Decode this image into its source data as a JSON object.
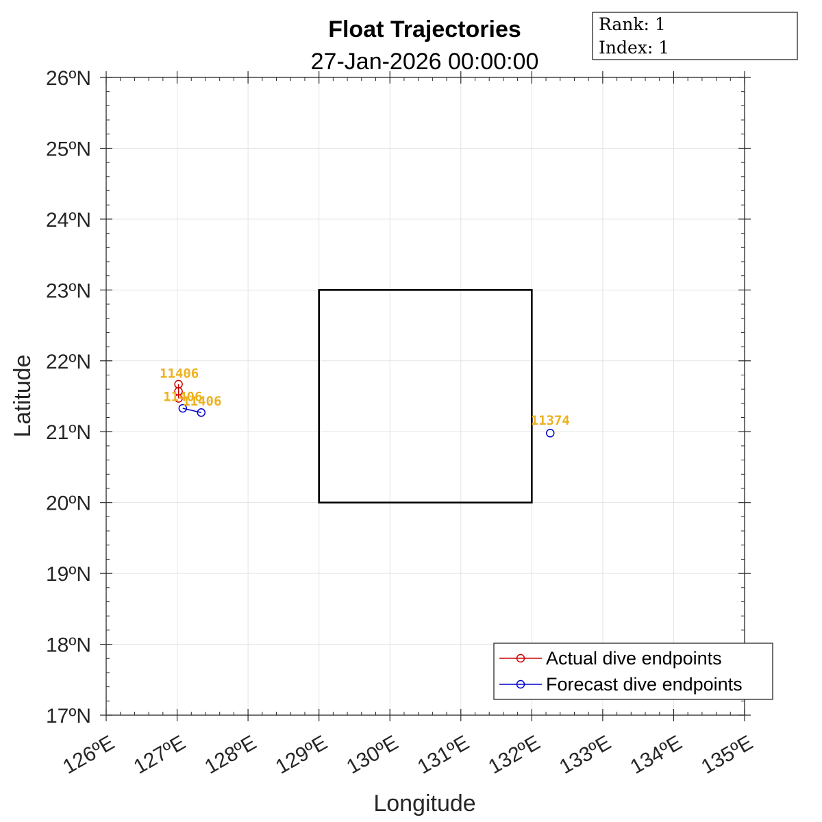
{
  "chart_data": {
    "type": "map",
    "title": "Float Trajectories",
    "subtitle": "27-Jan-2026 00:00:00",
    "xlabel": "Longitude",
    "ylabel": "Latitude",
    "xlim": [
      126,
      135
    ],
    "ylim": [
      17,
      26
    ],
    "x_ticks": [
      126,
      127,
      128,
      129,
      130,
      131,
      132,
      133,
      134,
      135
    ],
    "y_ticks": [
      17,
      18,
      19,
      20,
      21,
      22,
      23,
      24,
      25,
      26
    ],
    "x_tick_labels": [
      "126ºE",
      "127ºE",
      "128ºE",
      "129ºE",
      "130ºE",
      "131ºE",
      "132ºE",
      "133ºE",
      "134ºE",
      "135ºE"
    ],
    "y_tick_labels": [
      "17ºN",
      "18ºN",
      "19ºN",
      "20ºN",
      "21ºN",
      "22ºN",
      "23ºN",
      "24ºN",
      "25ºN",
      "26ºN"
    ],
    "grid": true,
    "legend_position": "bottom-right",
    "target_box": {
      "lon": [
        129,
        132
      ],
      "lat": [
        20,
        23
      ],
      "color": "#000000"
    },
    "series": [
      {
        "name": "Actual dive endpoints",
        "color": "#CC0000",
        "points": [
          {
            "lon": 127.02,
            "lat": 21.67
          },
          {
            "lon": 127.02,
            "lat": 21.57
          },
          {
            "lon": 127.02,
            "lat": 21.47
          }
        ]
      },
      {
        "name": "Forecast dive endpoints",
        "color": "#0000CC",
        "segments": [
          [
            {
              "lon": 127.08,
              "lat": 21.33
            },
            {
              "lon": 127.34,
              "lat": 21.27
            }
          ],
          [
            {
              "lon": 132.26,
              "lat": 20.98
            }
          ]
        ]
      }
    ],
    "float_labels": [
      {
        "text": "11406",
        "lon": 127.03,
        "lat": 21.76
      },
      {
        "text": "11406",
        "lon": 127.08,
        "lat": 21.43
      },
      {
        "text": "11406",
        "lon": 127.35,
        "lat": 21.37
      },
      {
        "text": "11374",
        "lon": 132.26,
        "lat": 21.1
      }
    ],
    "label_color": "#EDB120"
  },
  "info_box": {
    "rank_line": "Rank: 1",
    "index_line": "Index: 1"
  }
}
